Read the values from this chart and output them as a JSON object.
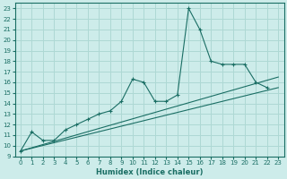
{
  "xlabel": "Humidex (Indice chaleur)",
  "bg_color": "#cdecea",
  "grid_color": "#aed8d4",
  "line_color": "#1a6e64",
  "xlim": [
    -0.5,
    23.5
  ],
  "ylim": [
    9,
    23.5
  ],
  "x_ticks": [
    0,
    1,
    2,
    3,
    4,
    5,
    6,
    7,
    8,
    9,
    10,
    11,
    12,
    13,
    14,
    15,
    16,
    17,
    18,
    19,
    20,
    21,
    22,
    23
  ],
  "y_ticks": [
    9,
    10,
    11,
    12,
    13,
    14,
    15,
    16,
    17,
    18,
    19,
    20,
    21,
    22,
    23
  ],
  "peaked_x": [
    0,
    1,
    2,
    3,
    4,
    5,
    6,
    7,
    8,
    9,
    10,
    11,
    12,
    13,
    14,
    15,
    16,
    17,
    18,
    19,
    20,
    21,
    22
  ],
  "peaked_y": [
    9.5,
    11.3,
    10.5,
    10.5,
    11.5,
    12.0,
    12.5,
    13.0,
    13.3,
    14.2,
    16.3,
    16.0,
    14.2,
    14.2,
    14.8,
    23.0,
    21.0,
    18.0,
    17.7,
    17.7,
    17.7,
    16.0,
    15.5
  ],
  "line2_x": [
    0,
    23
  ],
  "line2_y": [
    9.5,
    16.5
  ],
  "line3_x": [
    0,
    23
  ],
  "line3_y": [
    9.5,
    15.5
  ]
}
